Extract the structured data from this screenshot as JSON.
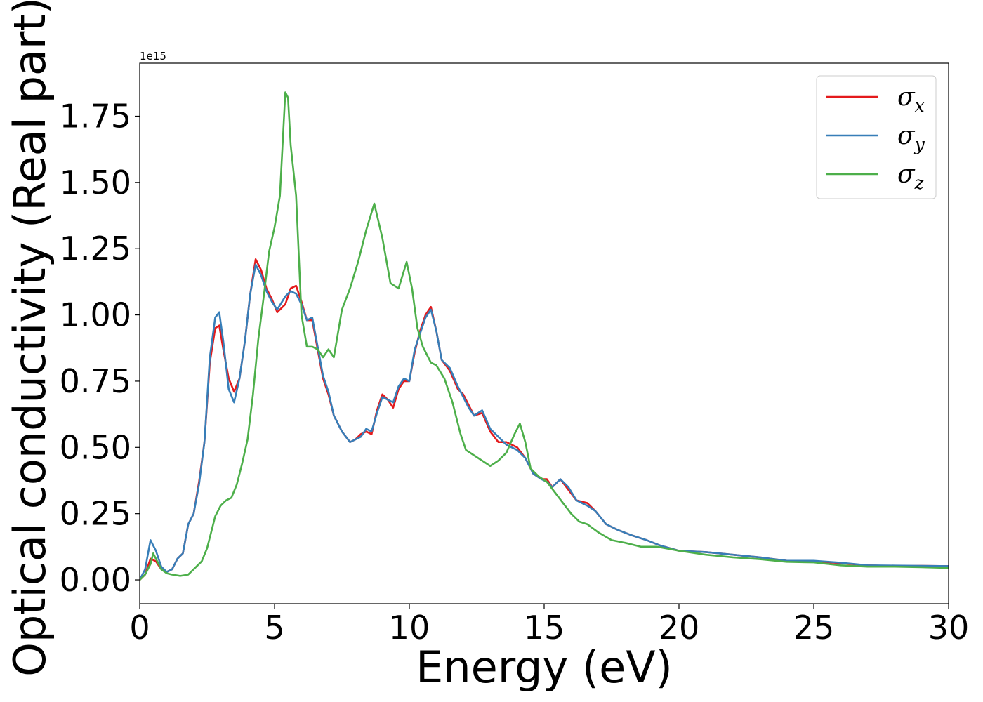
{
  "chart_data": {
    "type": "line",
    "title": "",
    "xlabel": "Energy (eV)",
    "ylabel": "Optical conductivity (Real part)",
    "y_multiplier_label": "1e15",
    "xlim": [
      0,
      30
    ],
    "ylim": [
      -0.09,
      1.95
    ],
    "xticks": [
      0,
      5,
      10,
      15,
      20,
      25,
      30
    ],
    "xtick_labels": [
      "0",
      "5",
      "10",
      "15",
      "20",
      "25",
      "30"
    ],
    "yticks": [
      0.0,
      0.25,
      0.5,
      0.75,
      1.0,
      1.25,
      1.5,
      1.75
    ],
    "ytick_labels": [
      "0.00",
      "0.25",
      "0.50",
      "0.75",
      "1.00",
      "1.25",
      "1.50",
      "1.75"
    ],
    "grid": false,
    "legend_position": "top-right",
    "series": [
      {
        "name": "σ",
        "subscript": "x",
        "color": "#e41a1c",
        "points": [
          [
            0,
            0
          ],
          [
            0.2,
            0.02
          ],
          [
            0.4,
            0.08
          ],
          [
            0.6,
            0.07
          ],
          [
            0.8,
            0.04
          ],
          [
            1.0,
            0.03
          ],
          [
            1.2,
            0.04
          ],
          [
            1.4,
            0.08
          ],
          [
            1.6,
            0.1
          ],
          [
            1.8,
            0.21
          ],
          [
            2.0,
            0.25
          ],
          [
            2.2,
            0.37
          ],
          [
            2.4,
            0.52
          ],
          [
            2.6,
            0.82
          ],
          [
            2.8,
            0.95
          ],
          [
            2.95,
            0.96
          ],
          [
            3.1,
            0.87
          ],
          [
            3.3,
            0.76
          ],
          [
            3.5,
            0.71
          ],
          [
            3.7,
            0.76
          ],
          [
            3.9,
            0.9
          ],
          [
            4.1,
            1.08
          ],
          [
            4.3,
            1.21
          ],
          [
            4.5,
            1.17
          ],
          [
            4.7,
            1.1
          ],
          [
            4.9,
            1.06
          ],
          [
            5.1,
            1.01
          ],
          [
            5.4,
            1.04
          ],
          [
            5.6,
            1.1
          ],
          [
            5.8,
            1.11
          ],
          [
            6.0,
            1.05
          ],
          [
            6.2,
            0.98
          ],
          [
            6.4,
            0.98
          ],
          [
            6.6,
            0.87
          ],
          [
            6.8,
            0.76
          ],
          [
            7.0,
            0.7
          ],
          [
            7.2,
            0.62
          ],
          [
            7.5,
            0.56
          ],
          [
            7.8,
            0.52
          ],
          [
            8.0,
            0.53
          ],
          [
            8.2,
            0.55
          ],
          [
            8.4,
            0.56
          ],
          [
            8.6,
            0.55
          ],
          [
            8.8,
            0.64
          ],
          [
            9.0,
            0.7
          ],
          [
            9.2,
            0.68
          ],
          [
            9.4,
            0.65
          ],
          [
            9.6,
            0.72
          ],
          [
            9.8,
            0.75
          ],
          [
            10.0,
            0.75
          ],
          [
            10.2,
            0.86
          ],
          [
            10.4,
            0.94
          ],
          [
            10.6,
            1.0
          ],
          [
            10.8,
            1.03
          ],
          [
            11.0,
            0.94
          ],
          [
            11.2,
            0.83
          ],
          [
            11.5,
            0.79
          ],
          [
            11.8,
            0.72
          ],
          [
            12.0,
            0.7
          ],
          [
            12.2,
            0.66
          ],
          [
            12.4,
            0.62
          ],
          [
            12.7,
            0.63
          ],
          [
            13.0,
            0.56
          ],
          [
            13.3,
            0.52
          ],
          [
            13.6,
            0.52
          ],
          [
            14.0,
            0.5
          ],
          [
            14.3,
            0.46
          ],
          [
            14.6,
            0.4
          ],
          [
            14.9,
            0.38
          ],
          [
            15.1,
            0.38
          ],
          [
            15.3,
            0.35
          ],
          [
            15.6,
            0.38
          ],
          [
            15.9,
            0.34
          ],
          [
            16.2,
            0.3
          ],
          [
            16.6,
            0.29
          ],
          [
            16.9,
            0.26
          ],
          [
            17.3,
            0.21
          ],
          [
            17.7,
            0.19
          ],
          [
            18.2,
            0.17
          ],
          [
            18.8,
            0.15
          ],
          [
            19.3,
            0.13
          ],
          [
            20,
            0.11
          ],
          [
            21,
            0.105
          ],
          [
            22,
            0.095
          ],
          [
            23,
            0.085
          ],
          [
            24,
            0.072
          ],
          [
            25,
            0.07
          ],
          [
            26,
            0.063
          ],
          [
            27,
            0.055
          ],
          [
            28,
            0.052
          ],
          [
            29,
            0.053
          ],
          [
            30,
            0.052
          ]
        ]
      },
      {
        "name": "σ",
        "subscript": "y",
        "color": "#377eb8",
        "points": [
          [
            0,
            0
          ],
          [
            0.2,
            0.04
          ],
          [
            0.4,
            0.15
          ],
          [
            0.6,
            0.11
          ],
          [
            0.8,
            0.05
          ],
          [
            1.0,
            0.03
          ],
          [
            1.2,
            0.04
          ],
          [
            1.4,
            0.08
          ],
          [
            1.6,
            0.1
          ],
          [
            1.8,
            0.21
          ],
          [
            2.0,
            0.25
          ],
          [
            2.2,
            0.36
          ],
          [
            2.4,
            0.52
          ],
          [
            2.6,
            0.84
          ],
          [
            2.8,
            0.99
          ],
          [
            2.95,
            1.01
          ],
          [
            3.1,
            0.9
          ],
          [
            3.3,
            0.72
          ],
          [
            3.5,
            0.67
          ],
          [
            3.7,
            0.76
          ],
          [
            3.9,
            0.9
          ],
          [
            4.1,
            1.08
          ],
          [
            4.3,
            1.19
          ],
          [
            4.5,
            1.15
          ],
          [
            4.7,
            1.09
          ],
          [
            4.9,
            1.05
          ],
          [
            5.1,
            1.02
          ],
          [
            5.4,
            1.07
          ],
          [
            5.6,
            1.09
          ],
          [
            5.8,
            1.08
          ],
          [
            6.0,
            1.04
          ],
          [
            6.2,
            0.98
          ],
          [
            6.4,
            0.99
          ],
          [
            6.6,
            0.88
          ],
          [
            6.8,
            0.77
          ],
          [
            7.0,
            0.71
          ],
          [
            7.2,
            0.62
          ],
          [
            7.5,
            0.56
          ],
          [
            7.8,
            0.52
          ],
          [
            8.0,
            0.53
          ],
          [
            8.2,
            0.54
          ],
          [
            8.4,
            0.57
          ],
          [
            8.6,
            0.56
          ],
          [
            8.8,
            0.63
          ],
          [
            9.0,
            0.69
          ],
          [
            9.2,
            0.68
          ],
          [
            9.4,
            0.67
          ],
          [
            9.6,
            0.73
          ],
          [
            9.8,
            0.76
          ],
          [
            10.0,
            0.75
          ],
          [
            10.2,
            0.87
          ],
          [
            10.4,
            0.93
          ],
          [
            10.6,
            0.99
          ],
          [
            10.8,
            1.02
          ],
          [
            11.0,
            0.94
          ],
          [
            11.2,
            0.83
          ],
          [
            11.5,
            0.8
          ],
          [
            11.8,
            0.73
          ],
          [
            12.0,
            0.69
          ],
          [
            12.2,
            0.65
          ],
          [
            12.4,
            0.62
          ],
          [
            12.7,
            0.64
          ],
          [
            13.0,
            0.57
          ],
          [
            13.3,
            0.54
          ],
          [
            13.6,
            0.51
          ],
          [
            14.0,
            0.49
          ],
          [
            14.3,
            0.46
          ],
          [
            14.6,
            0.4
          ],
          [
            14.9,
            0.38
          ],
          [
            15.1,
            0.37
          ],
          [
            15.3,
            0.35
          ],
          [
            15.6,
            0.38
          ],
          [
            15.9,
            0.35
          ],
          [
            16.2,
            0.3
          ],
          [
            16.6,
            0.28
          ],
          [
            16.9,
            0.26
          ],
          [
            17.3,
            0.21
          ],
          [
            17.7,
            0.19
          ],
          [
            18.2,
            0.17
          ],
          [
            18.8,
            0.15
          ],
          [
            19.3,
            0.13
          ],
          [
            20,
            0.11
          ],
          [
            21,
            0.105
          ],
          [
            22,
            0.095
          ],
          [
            23,
            0.085
          ],
          [
            24,
            0.072
          ],
          [
            25,
            0.072
          ],
          [
            26,
            0.065
          ],
          [
            27,
            0.055
          ],
          [
            28,
            0.054
          ],
          [
            29,
            0.053
          ],
          [
            30,
            0.052
          ]
        ]
      },
      {
        "name": "σ",
        "subscript": "z",
        "color": "#4daf4a",
        "points": [
          [
            0,
            0
          ],
          [
            0.2,
            0.02
          ],
          [
            0.4,
            0.06
          ],
          [
            0.5,
            0.1
          ],
          [
            0.6,
            0.08
          ],
          [
            0.8,
            0.04
          ],
          [
            1.0,
            0.025
          ],
          [
            1.2,
            0.02
          ],
          [
            1.5,
            0.015
          ],
          [
            1.8,
            0.02
          ],
          [
            2.0,
            0.04
          ],
          [
            2.3,
            0.07
          ],
          [
            2.5,
            0.12
          ],
          [
            2.8,
            0.24
          ],
          [
            3.0,
            0.28
          ],
          [
            3.2,
            0.3
          ],
          [
            3.4,
            0.31
          ],
          [
            3.6,
            0.36
          ],
          [
            3.8,
            0.44
          ],
          [
            4.0,
            0.53
          ],
          [
            4.2,
            0.7
          ],
          [
            4.4,
            0.91
          ],
          [
            4.6,
            1.07
          ],
          [
            4.8,
            1.24
          ],
          [
            5.0,
            1.33
          ],
          [
            5.2,
            1.45
          ],
          [
            5.4,
            1.84
          ],
          [
            5.5,
            1.82
          ],
          [
            5.6,
            1.64
          ],
          [
            5.8,
            1.45
          ],
          [
            6.0,
            1.0
          ],
          [
            6.2,
            0.88
          ],
          [
            6.4,
            0.88
          ],
          [
            6.6,
            0.87
          ],
          [
            6.8,
            0.84
          ],
          [
            7.0,
            0.87
          ],
          [
            7.2,
            0.84
          ],
          [
            7.5,
            1.02
          ],
          [
            7.8,
            1.1
          ],
          [
            8.1,
            1.2
          ],
          [
            8.4,
            1.32
          ],
          [
            8.7,
            1.42
          ],
          [
            9.0,
            1.29
          ],
          [
            9.3,
            1.12
          ],
          [
            9.6,
            1.1
          ],
          [
            9.9,
            1.2
          ],
          [
            10.1,
            1.1
          ],
          [
            10.3,
            0.95
          ],
          [
            10.5,
            0.88
          ],
          [
            10.8,
            0.82
          ],
          [
            11.0,
            0.81
          ],
          [
            11.3,
            0.76
          ],
          [
            11.6,
            0.67
          ],
          [
            11.9,
            0.55
          ],
          [
            12.1,
            0.49
          ],
          [
            12.4,
            0.47
          ],
          [
            12.7,
            0.45
          ],
          [
            13.0,
            0.43
          ],
          [
            13.3,
            0.45
          ],
          [
            13.6,
            0.48
          ],
          [
            13.9,
            0.55
          ],
          [
            14.1,
            0.59
          ],
          [
            14.3,
            0.52
          ],
          [
            14.5,
            0.42
          ],
          [
            14.8,
            0.39
          ],
          [
            15.1,
            0.37
          ],
          [
            15.4,
            0.33
          ],
          [
            15.7,
            0.29
          ],
          [
            16.0,
            0.25
          ],
          [
            16.3,
            0.22
          ],
          [
            16.6,
            0.21
          ],
          [
            17.0,
            0.18
          ],
          [
            17.5,
            0.15
          ],
          [
            18.0,
            0.14
          ],
          [
            18.6,
            0.125
          ],
          [
            19.2,
            0.125
          ],
          [
            20,
            0.11
          ],
          [
            21,
            0.095
          ],
          [
            22,
            0.085
          ],
          [
            23,
            0.078
          ],
          [
            24,
            0.068
          ],
          [
            25,
            0.066
          ],
          [
            26,
            0.055
          ],
          [
            27,
            0.05
          ],
          [
            28,
            0.05
          ],
          [
            29,
            0.048
          ],
          [
            30,
            0.045
          ]
        ]
      }
    ]
  }
}
